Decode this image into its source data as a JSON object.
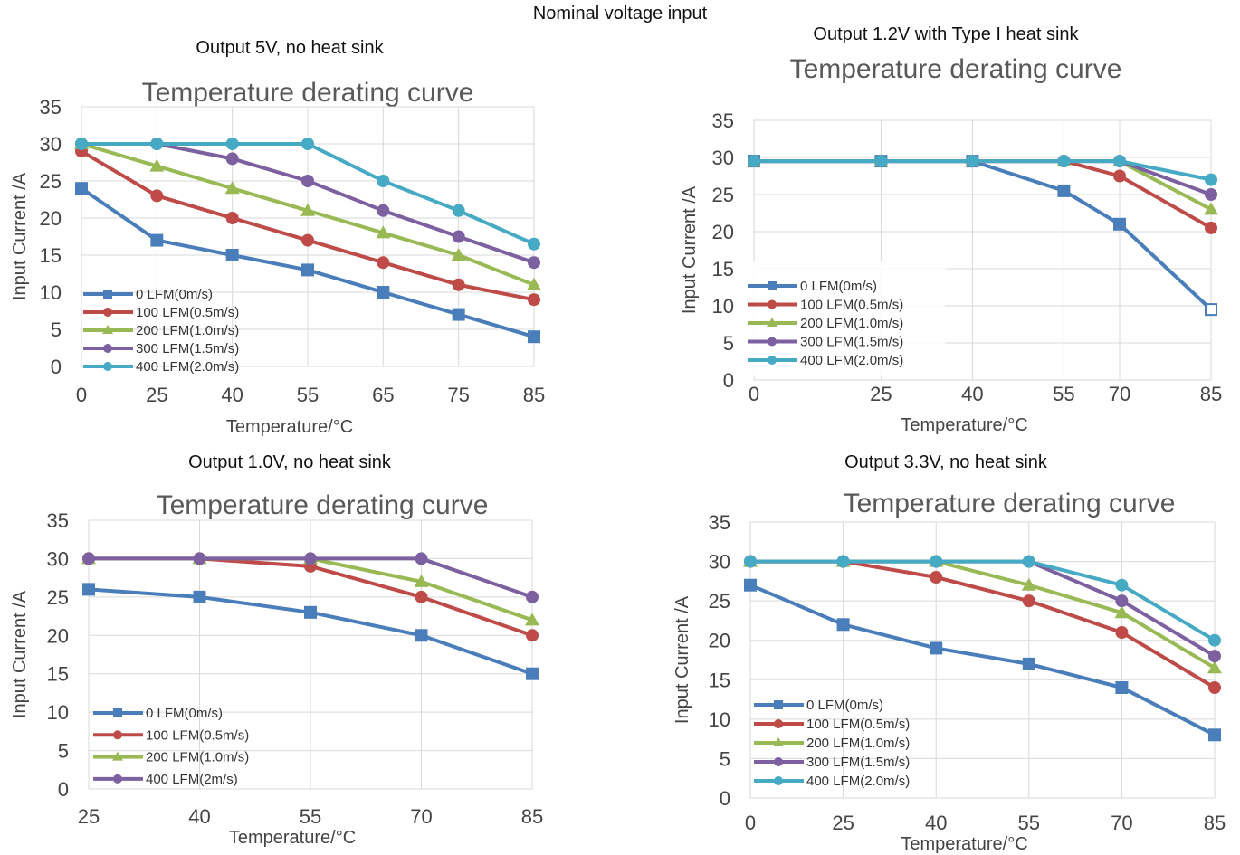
{
  "page_title": "Nominal voltage input",
  "colors": {
    "s0": "#4a7ebb",
    "s1": "#be4b48",
    "s2": "#98b954",
    "s3": "#7d60a0",
    "s4": "#46aac5",
    "grid": "#d9d9d9"
  },
  "chart_data": [
    {
      "type": "line",
      "subtitle": "Output 5V, no heat sink",
      "title": "Temperature derating curve",
      "xlabel": "Temperature/°C",
      "ylabel": "Input Current /A",
      "categories": [
        "0",
        "25",
        "40",
        "55",
        "65",
        "75",
        "85"
      ],
      "ylim": [
        0,
        35
      ],
      "yticks": [
        0,
        5,
        10,
        15,
        20,
        25,
        30,
        35
      ],
      "grid": true,
      "legend": "bottom-left",
      "series": [
        {
          "name": "0 LFM(0m/s)",
          "marker": "square",
          "values": [
            24,
            17,
            15,
            13,
            10,
            7,
            4
          ]
        },
        {
          "name": "100 LFM(0.5m/s)",
          "marker": "circle",
          "values": [
            29,
            23,
            20,
            17,
            14,
            11,
            9
          ]
        },
        {
          "name": "200 LFM(1.0m/s)",
          "marker": "triangle",
          "values": [
            30,
            27,
            24,
            21,
            18,
            15,
            11
          ]
        },
        {
          "name": "300 LFM(1.5m/s)",
          "marker": "circle",
          "values": [
            30,
            30,
            28,
            25,
            21,
            17.5,
            14
          ]
        },
        {
          "name": "400 LFM(2.0m/s)",
          "marker": "circle",
          "values": [
            30,
            30,
            30,
            30,
            25,
            21,
            16.5
          ]
        }
      ]
    },
    {
      "type": "line",
      "subtitle": "Output 1.2V with Type I heat sink",
      "title": "Temperature derating curve",
      "xlabel": "Temperature/°C",
      "ylabel": "Input Current /A",
      "categories": [
        "0",
        "25",
        "40",
        "55",
        "70",
        "85"
      ],
      "ylim": [
        0,
        35
      ],
      "yticks": [
        0,
        5,
        10,
        15,
        20,
        25,
        30,
        35
      ],
      "grid": true,
      "legend": "bottom-left",
      "series": [
        {
          "name": "0 LFM(0m/s)",
          "marker": "square",
          "values": [
            29.5,
            29.5,
            29.5,
            25.5,
            21,
            9.5
          ]
        },
        {
          "name": "100 LFM(0.5m/s)",
          "marker": "circle",
          "values": [
            29.5,
            29.5,
            29.5,
            29.5,
            27.5,
            20.5
          ]
        },
        {
          "name": "200 LFM(1.0m/s)",
          "marker": "triangle",
          "values": [
            29.5,
            29.5,
            29.5,
            29.5,
            29.5,
            23
          ]
        },
        {
          "name": "300 LFM(1.5m/s)",
          "marker": "circle",
          "values": [
            29.5,
            29.5,
            29.5,
            29.5,
            29.5,
            25
          ]
        },
        {
          "name": "400 LFM(2.0m/s)",
          "marker": "circle",
          "values": [
            29.5,
            29.5,
            29.5,
            29.5,
            29.5,
            27
          ]
        }
      ]
    },
    {
      "type": "line",
      "subtitle": "Output 1.0V, no heat sink",
      "title": "Temperature derating curve",
      "xlabel": "Temperature/°C",
      "ylabel": "Input Current /A",
      "categories": [
        "25",
        "40",
        "55",
        "70",
        "85"
      ],
      "ylim": [
        0,
        35
      ],
      "yticks": [
        0,
        5,
        10,
        15,
        20,
        25,
        30,
        35
      ],
      "grid": true,
      "legend": "bottom-left",
      "series": [
        {
          "name": "0 LFM(0m/s)",
          "marker": "square",
          "values": [
            26,
            25,
            23,
            20,
            15
          ]
        },
        {
          "name": "100 LFM(0.5m/s)",
          "marker": "circle",
          "values": [
            30,
            30,
            29,
            25,
            20
          ]
        },
        {
          "name": "200 LFM(1.0m/s)",
          "marker": "triangle",
          "values": [
            30,
            30,
            30,
            27,
            22
          ]
        },
        {
          "name": "400 LFM(2m/s)",
          "marker": "circle",
          "values": [
            30,
            30,
            30,
            30,
            25
          ]
        }
      ]
    },
    {
      "type": "line",
      "subtitle": "Output 3.3V, no heat sink",
      "title": "Temperature derating curve",
      "xlabel": "Temperature/°C",
      "ylabel": "Input Current /A",
      "categories": [
        "0",
        "25",
        "40",
        "55",
        "70",
        "85"
      ],
      "ylim": [
        0,
        35
      ],
      "yticks": [
        0,
        5,
        10,
        15,
        20,
        25,
        30,
        35
      ],
      "grid": true,
      "legend": "bottom-left",
      "series": [
        {
          "name": "0 LFM(0m/s)",
          "marker": "square",
          "values": [
            27,
            22,
            19,
            17,
            14,
            8
          ]
        },
        {
          "name": "100 LFM(0.5m/s)",
          "marker": "circle",
          "values": [
            30,
            30,
            28,
            25,
            21,
            14
          ]
        },
        {
          "name": "200 LFM(1.0m/s)",
          "marker": "triangle",
          "values": [
            30,
            30,
            30,
            27,
            23.5,
            16.5
          ]
        },
        {
          "name": "300 LFM(1.5m/s)",
          "marker": "circle",
          "values": [
            30,
            30,
            30,
            30,
            25,
            18
          ]
        },
        {
          "name": "400 LFM(2.0m/s)",
          "marker": "circle",
          "values": [
            30,
            30,
            30,
            30,
            27,
            20
          ]
        }
      ]
    }
  ]
}
